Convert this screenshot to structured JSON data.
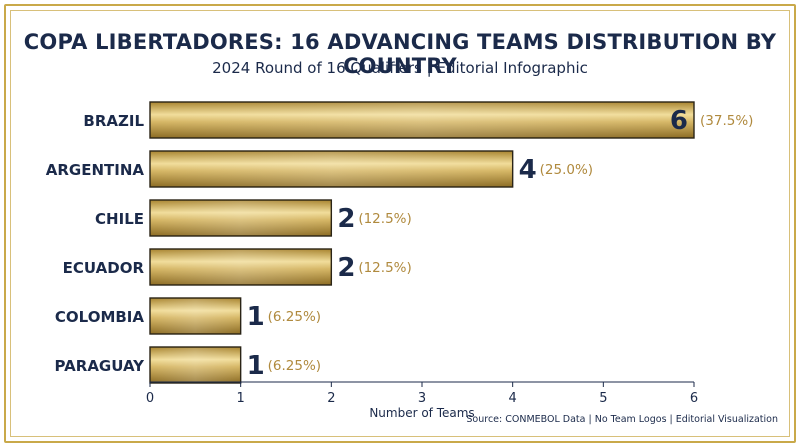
{
  "title": "COPA LIBERTADORES: 16 ADVANCING TEAMS DISTRIBUTION BY COUNTRY",
  "subtitle": "2024 Round of 16 Qualifiers | Editorial Infographic",
  "source": "Source: CONMEBOL Data | No Team Logos | Editorial Visualization",
  "colors": {
    "gold_light": "#f0dc96",
    "gold_mid": "#c9a44e",
    "gold_dark": "#8a6a22",
    "navy": "#1b2a4a",
    "percent_text": "#b08a3e"
  },
  "chart_data": {
    "type": "bar",
    "orientation": "horizontal",
    "categories": [
      "BRAZIL",
      "ARGENTINA",
      "CHILE",
      "ECUADOR",
      "COLOMBIA",
      "PARAGUAY"
    ],
    "values": [
      6,
      4,
      2,
      2,
      1,
      1
    ],
    "value_labels": [
      "6",
      "4",
      "2",
      "2",
      "1",
      "1"
    ],
    "percent_labels": [
      "(37.5%)",
      "(25.0%)",
      "(12.5%)",
      "(12.5%)",
      "(6.25%)",
      "(6.25%)"
    ],
    "xlabel": "Number of Teams",
    "ylabel": "",
    "xlim": [
      0,
      6
    ],
    "xticks": [
      "0",
      "1",
      "2",
      "3",
      "4",
      "5",
      "6"
    ],
    "grid": false,
    "legend": "none"
  }
}
